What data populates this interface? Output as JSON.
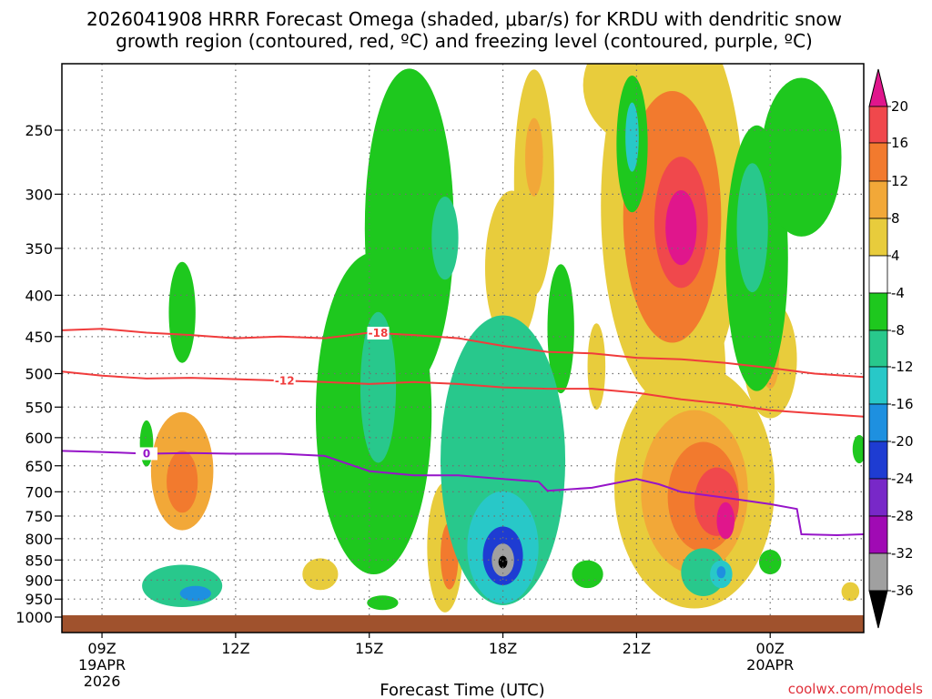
{
  "chart_data": {
    "type": "heatmap",
    "title": [
      "2026041908 HRRR Forecast Omega (shaded, μbar/s) for KRDU with dendritic snow",
      "growth region (contoured, red, ºC) and freezing level (contoured, purple, ºC)"
    ],
    "xlabel": "Forecast Time (UTC)",
    "ylabel": "",
    "x_ticks": [
      {
        "hour": 9,
        "label": "09Z",
        "date_lines": [
          "19APR",
          "2026"
        ]
      },
      {
        "hour": 12,
        "label": "12Z",
        "date_lines": []
      },
      {
        "hour": 15,
        "label": "15Z",
        "date_lines": []
      },
      {
        "hour": 18,
        "label": "18Z",
        "date_lines": []
      },
      {
        "hour": 21,
        "label": "21Z",
        "date_lines": []
      },
      {
        "hour": 24,
        "label": "00Z",
        "date_lines": [
          "20APR"
        ]
      }
    ],
    "xlim": [
      8.1,
      26.1
    ],
    "y_ticks": [
      250,
      300,
      350,
      400,
      450,
      500,
      550,
      600,
      650,
      700,
      750,
      800,
      850,
      900,
      950,
      1000
    ],
    "ylim": [
      200,
      1010
    ],
    "y_scale": "log-pressure",
    "colorbar": {
      "label_values": [
        20,
        16,
        12,
        8,
        4,
        -4,
        -8,
        -12,
        -16,
        -20,
        -24,
        -28,
        -32,
        -36
      ],
      "colors": {
        "above_20": "#e0168c",
        "16_20": "#f0484c",
        "12_16": "#f27a2e",
        "8_12": "#f2a838",
        "4_8": "#e8cc3c",
        "neutral": "#ffffff",
        "m4_m8": "#1ec81e",
        "m8_m12": "#28c88c",
        "m12_m16": "#28c8c8",
        "m16_m20": "#1e90e0",
        "m20_m24": "#1e3cd2",
        "m24_m28": "#7828c8",
        "m28_m32": "#a00ab4",
        "m32_m36": "#a0a0a0",
        "below_m36": "#000000"
      }
    },
    "omega_features": [
      {
        "t": 10.8,
        "p": 420,
        "rt": 0.3,
        "rp": 60,
        "v": -6
      },
      {
        "t": 10.0,
        "p": 610,
        "rt": 0.15,
        "rp": 40,
        "v": -6
      },
      {
        "t": 10.8,
        "p": 660,
        "rt": 0.7,
        "rp": 110,
        "v": 8
      },
      {
        "t": 10.8,
        "p": 680,
        "rt": 0.35,
        "rp": 60,
        "v": 12
      },
      {
        "t": 10.8,
        "p": 915,
        "rt": 0.9,
        "rp": 55,
        "v": -9
      },
      {
        "t": 11.1,
        "p": 935,
        "rt": 0.35,
        "rp": 20,
        "v": -16
      },
      {
        "t": 13.9,
        "p": 885,
        "rt": 0.4,
        "rp": 40,
        "v": 5
      },
      {
        "t": 15.1,
        "p": 560,
        "rt": 1.3,
        "rp": 240,
        "v": -6
      },
      {
        "t": 15.2,
        "p": 520,
        "rt": 0.4,
        "rp": 110,
        "v": -10
      },
      {
        "t": 15.3,
        "p": 960,
        "rt": 0.35,
        "rp": 20,
        "v": -5
      },
      {
        "t": 15.9,
        "p": 330,
        "rt": 1.0,
        "rp": 140,
        "v": -6
      },
      {
        "t": 16.7,
        "p": 340,
        "rt": 0.3,
        "rp": 40,
        "v": -10
      },
      {
        "t": 16.7,
        "p": 820,
        "rt": 0.4,
        "rp": 150,
        "v": 7
      },
      {
        "t": 16.8,
        "p": 840,
        "rt": 0.2,
        "rp": 80,
        "v": 12
      },
      {
        "t": 18.0,
        "p": 640,
        "rt": 1.4,
        "rp": 250,
        "v": -10
      },
      {
        "t": 18.0,
        "p": 820,
        "rt": 0.8,
        "rp": 130,
        "v": -12
      },
      {
        "t": 18.0,
        "p": 840,
        "rt": 0.45,
        "rp": 70,
        "v": -22
      },
      {
        "t": 18.0,
        "p": 850,
        "rt": 0.25,
        "rp": 40,
        "v": -32
      },
      {
        "t": 18.0,
        "p": 855,
        "rt": 0.1,
        "rp": 15,
        "v": -40
      },
      {
        "t": 18.7,
        "p": 290,
        "rt": 0.45,
        "rp": 90,
        "v": 6
      },
      {
        "t": 18.2,
        "p": 370,
        "rt": 0.6,
        "rp": 80,
        "v": 5
      },
      {
        "t": 19.3,
        "p": 440,
        "rt": 0.3,
        "rp": 80,
        "v": -6
      },
      {
        "t": 18.7,
        "p": 270,
        "rt": 0.2,
        "rp": 30,
        "v": 9
      },
      {
        "t": 19.9,
        "p": 885,
        "rt": 0.35,
        "rp": 35,
        "v": -6
      },
      {
        "t": 20.1,
        "p": 490,
        "rt": 0.2,
        "rp": 60,
        "v": 5
      },
      {
        "t": 20.9,
        "p": 260,
        "rt": 0.35,
        "rp": 50,
        "v": -7
      },
      {
        "t": 20.9,
        "p": 255,
        "rt": 0.15,
        "rp": 25,
        "v": -12
      },
      {
        "t": 21.8,
        "p": 310,
        "rt": 1.6,
        "rp": 160,
        "v": 7
      },
      {
        "t": 21.8,
        "p": 320,
        "rt": 1.1,
        "rp": 110,
        "v": 12
      },
      {
        "t": 22.0,
        "p": 325,
        "rt": 0.6,
        "rp": 60,
        "v": 17
      },
      {
        "t": 22.0,
        "p": 330,
        "rt": 0.35,
        "rp": 35,
        "v": 22
      },
      {
        "t": 21.4,
        "p": 220,
        "rt": 1.6,
        "rp": 40,
        "v": 5
      },
      {
        "t": 22.3,
        "p": 690,
        "rt": 1.8,
        "rp": 230,
        "v": 7
      },
      {
        "t": 22.3,
        "p": 700,
        "rt": 1.2,
        "rp": 160,
        "v": 11
      },
      {
        "t": 22.5,
        "p": 710,
        "rt": 0.8,
        "rp": 110,
        "v": 15
      },
      {
        "t": 22.8,
        "p": 720,
        "rt": 0.5,
        "rp": 70,
        "v": 18
      },
      {
        "t": 23.0,
        "p": 760,
        "rt": 0.2,
        "rp": 40,
        "v": 22
      },
      {
        "t": 22.5,
        "p": 500,
        "rt": 0.5,
        "rp": 120,
        "v": 6
      },
      {
        "t": 22.5,
        "p": 880,
        "rt": 0.5,
        "rp": 60,
        "v": -9
      },
      {
        "t": 22.9,
        "p": 885,
        "rt": 0.25,
        "rp": 35,
        "v": -14
      },
      {
        "t": 22.9,
        "p": 880,
        "rt": 0.1,
        "rp": 15,
        "v": -19
      },
      {
        "t": 23.7,
        "p": 360,
        "rt": 0.7,
        "rp": 130,
        "v": -6
      },
      {
        "t": 23.6,
        "p": 330,
        "rt": 0.35,
        "rp": 60,
        "v": -11
      },
      {
        "t": 24.7,
        "p": 270,
        "rt": 0.9,
        "rp": 60,
        "v": -6
      },
      {
        "t": 24.0,
        "p": 480,
        "rt": 0.6,
        "rp": 80,
        "v": 6
      },
      {
        "t": 24.0,
        "p": 480,
        "rt": 0.2,
        "rp": 40,
        "v": 10
      },
      {
        "t": 24.0,
        "p": 855,
        "rt": 0.25,
        "rp": 30,
        "v": -6
      },
      {
        "t": 25.8,
        "p": 930,
        "rt": 0.2,
        "rp": 25,
        "v": 5
      },
      {
        "t": 26.0,
        "p": 620,
        "rt": 0.15,
        "rp": 25,
        "v": -6
      }
    ],
    "contours": [
      {
        "name": "-18",
        "color": "#f03c3c",
        "label": "-18",
        "label_at": 15.2,
        "points": [
          [
            8.1,
            442
          ],
          [
            9.0,
            440
          ],
          [
            10.0,
            445
          ],
          [
            11.0,
            448
          ],
          [
            12.0,
            452
          ],
          [
            13.0,
            450
          ],
          [
            14.0,
            452
          ],
          [
            15.0,
            445
          ],
          [
            16.0,
            448
          ],
          [
            17.0,
            452
          ],
          [
            18.0,
            462
          ],
          [
            19.0,
            470
          ],
          [
            20.0,
            472
          ],
          [
            21.0,
            478
          ],
          [
            22.0,
            480
          ],
          [
            23.0,
            485
          ],
          [
            24.0,
            492
          ],
          [
            25.0,
            500
          ],
          [
            26.1,
            505
          ]
        ]
      },
      {
        "name": "-12",
        "color": "#f03c3c",
        "label": "-12",
        "label_at": 13.1,
        "points": [
          [
            8.1,
            497
          ],
          [
            9.0,
            503
          ],
          [
            10.0,
            507
          ],
          [
            11.0,
            506
          ],
          [
            12.0,
            508
          ],
          [
            13.0,
            510
          ],
          [
            14.0,
            512
          ],
          [
            15.0,
            515
          ],
          [
            16.0,
            512
          ],
          [
            17.0,
            515
          ],
          [
            18.0,
            520
          ],
          [
            19.0,
            522
          ],
          [
            20.0,
            522
          ],
          [
            21.0,
            528
          ],
          [
            22.0,
            538
          ],
          [
            23.0,
            545
          ],
          [
            24.0,
            555
          ],
          [
            25.0,
            560
          ],
          [
            26.1,
            565
          ]
        ]
      },
      {
        "name": "0",
        "color": "#9614c8",
        "label": "0",
        "label_at": 10.0,
        "points": [
          [
            8.1,
            623
          ],
          [
            9.0,
            625
          ],
          [
            10.0,
            628
          ],
          [
            11.0,
            627
          ],
          [
            12.0,
            628
          ],
          [
            13.0,
            628
          ],
          [
            14.0,
            632
          ],
          [
            15.0,
            660
          ],
          [
            16.0,
            668
          ],
          [
            17.0,
            668
          ],
          [
            18.0,
            675
          ],
          [
            18.8,
            680
          ],
          [
            19.0,
            698
          ],
          [
            20.0,
            692
          ],
          [
            21.0,
            675
          ],
          [
            21.5,
            685
          ],
          [
            22.0,
            700
          ],
          [
            23.0,
            712
          ],
          [
            24.0,
            725
          ],
          [
            24.6,
            735
          ],
          [
            24.7,
            790
          ],
          [
            25.5,
            792
          ],
          [
            26.1,
            790
          ]
        ]
      }
    ]
  },
  "credit": "coolwx.com/models"
}
